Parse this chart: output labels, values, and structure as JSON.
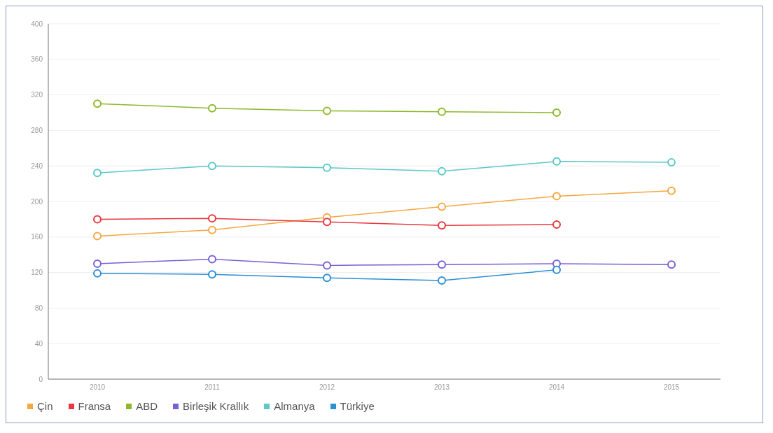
{
  "chart_data": {
    "type": "line",
    "categories": [
      "2010",
      "2011",
      "2012",
      "2013",
      "2014",
      "2015"
    ],
    "series": [
      {
        "name": "Çin",
        "color": "#f5a742",
        "values": [
          161,
          168,
          182,
          194,
          206,
          212
        ]
      },
      {
        "name": "Fransa",
        "color": "#e8383d",
        "values": [
          180,
          181,
          177,
          173,
          174,
          null
        ]
      },
      {
        "name": "ABD",
        "color": "#8db82b",
        "values": [
          310,
          305,
          302,
          301,
          300,
          null
        ]
      },
      {
        "name": "Birleşik Krallık",
        "color": "#7b5fd6",
        "values": [
          130,
          135,
          128,
          129,
          130,
          129
        ]
      },
      {
        "name": "Almanya",
        "color": "#5cc8c8",
        "values": [
          232,
          240,
          238,
          234,
          245,
          244
        ]
      },
      {
        "name": "Türkiye",
        "color": "#2a8fd6",
        "values": [
          119,
          118,
          114,
          111,
          123,
          null
        ]
      }
    ],
    "ylim": [
      0,
      400
    ],
    "yticks": [
      0,
      40,
      80,
      120,
      160,
      200,
      240,
      280,
      320,
      360,
      400
    ],
    "grid": "y",
    "legend": "bottom",
    "marker": "circle",
    "line_style": "solid"
  }
}
